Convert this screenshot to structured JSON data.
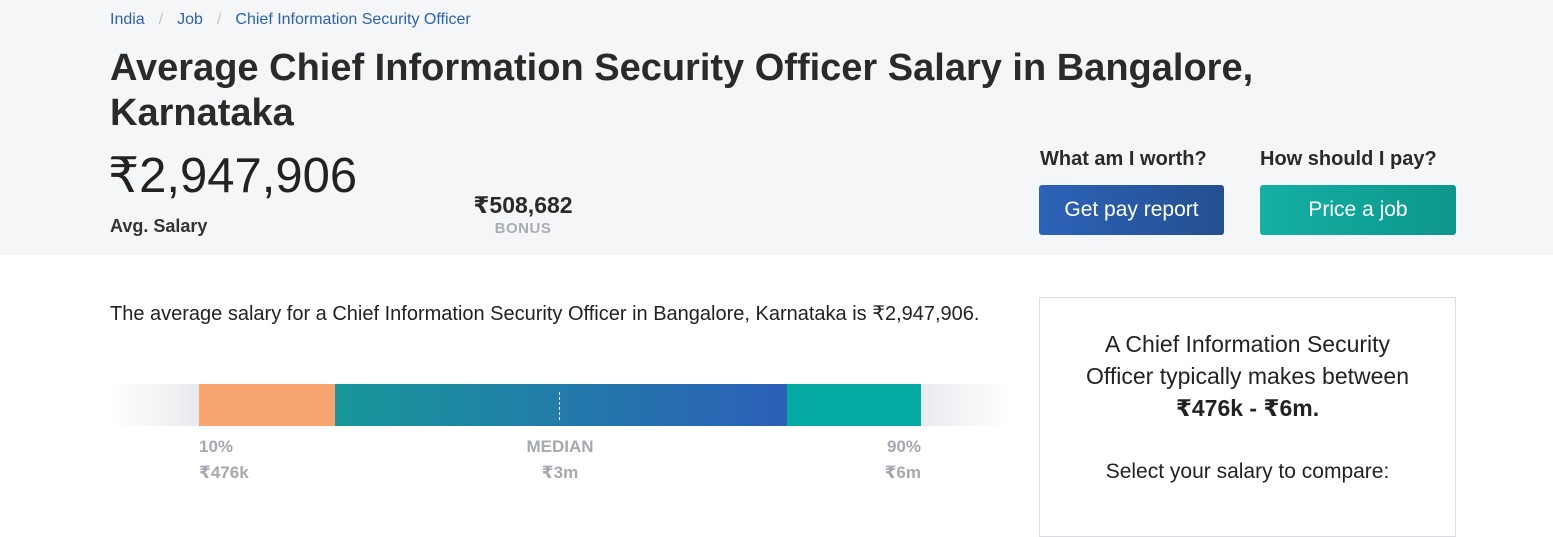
{
  "breadcrumb": {
    "items": [
      "India",
      "Job",
      "Chief Information Security Officer"
    ],
    "separator": "/"
  },
  "header": {
    "title": "Average Chief Information Security Officer Salary in Bangalore, Karnataka",
    "avg_salary": "₹2,947,906",
    "avg_label": "Avg. Salary",
    "bonus_value": "₹508,682",
    "bonus_label": "BONUS"
  },
  "cta": {
    "worth_question": "What am I worth?",
    "pay_report_label": "Get pay report",
    "pay_question": "How should I pay?",
    "price_job_label": "Price a job"
  },
  "main": {
    "summary": "The average salary for a Chief Information Security Officer in Bangalore, Karnataka is ₹2,947,906."
  },
  "range": {
    "low_pct": "10%",
    "low_value": "₹476k",
    "median_label": "MEDIAN",
    "median_value": "₹3m",
    "high_pct": "90%",
    "high_value": "₹6m"
  },
  "side_card": {
    "intro": "A Chief Information Security Officer typically makes between",
    "range": "₹476k - ₹6m.",
    "select_prompt": "Select your salary to compare:"
  },
  "colors": {
    "link": "#2b63b0",
    "pay_button": "#2c62b8",
    "price_button": "#14b0a4",
    "segment_low": "#f9a571",
    "segment_high": "#05aba2"
  }
}
